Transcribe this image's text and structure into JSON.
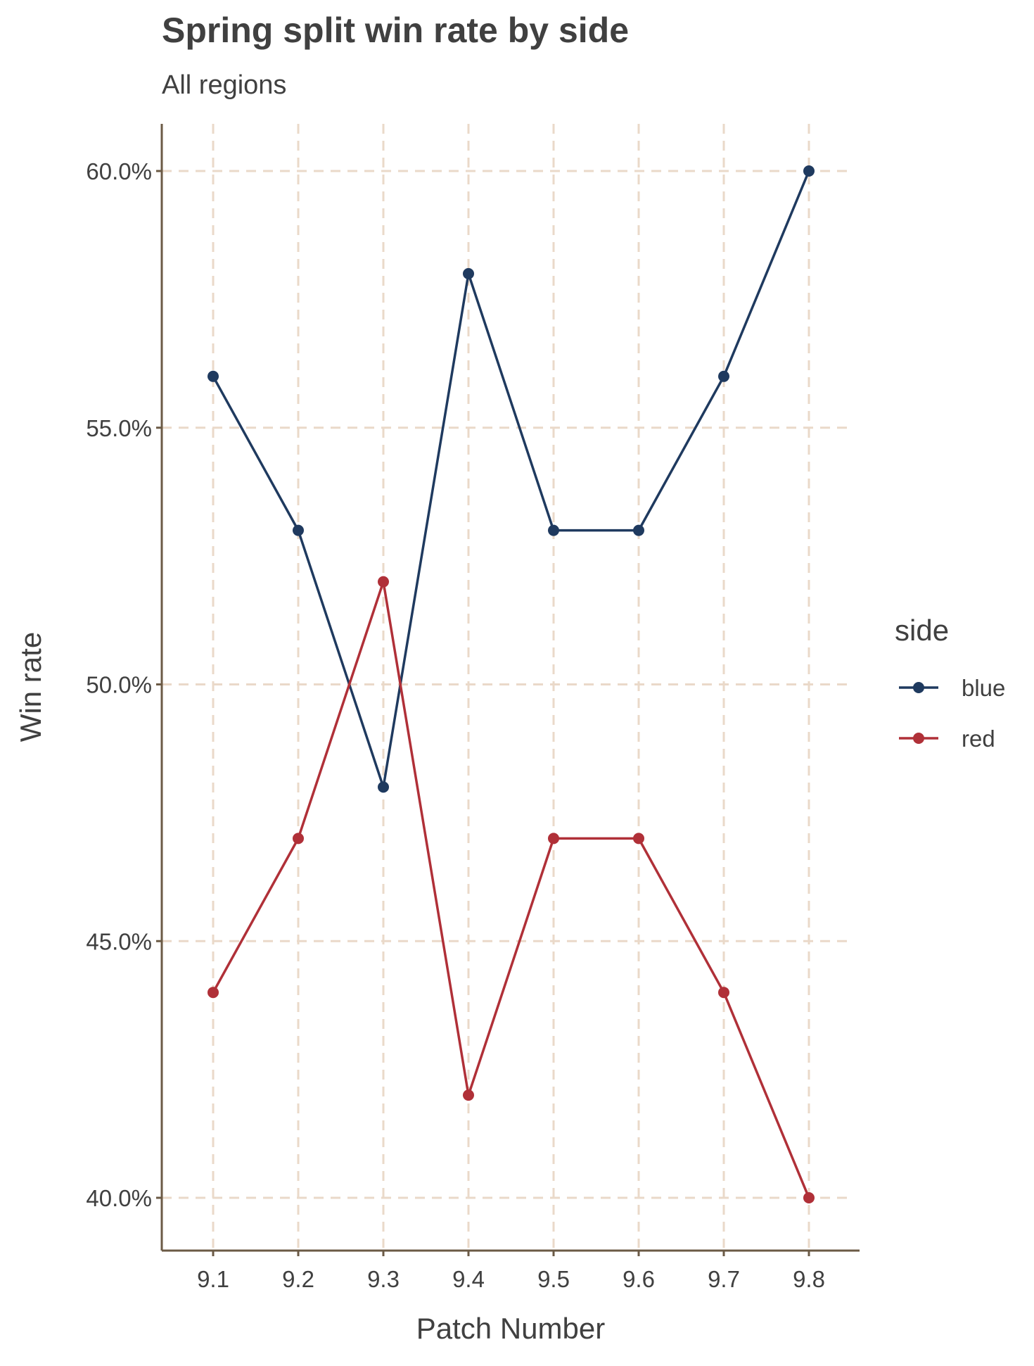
{
  "chart_data": {
    "type": "line",
    "title": "Spring split win rate by side",
    "subtitle": "All regions",
    "xlabel": "Patch Number",
    "ylabel": "Win rate",
    "categories": [
      "9.1",
      "9.2",
      "9.3",
      "9.4",
      "9.5",
      "9.6",
      "9.7",
      "9.8"
    ],
    "y_ticks": [
      0.4,
      0.45,
      0.5,
      0.55,
      0.6
    ],
    "y_tick_labels": [
      "40.0%",
      "45.0%",
      "50.0%",
      "55.0%",
      "60.0%"
    ],
    "ylim": [
      0.39,
      0.61
    ],
    "grid": true,
    "legend": {
      "title": "side",
      "placement": "right"
    },
    "series": [
      {
        "name": "blue",
        "color": "#1f3a5f",
        "values": [
          0.56,
          0.53,
          0.48,
          0.58,
          0.53,
          0.53,
          0.56,
          0.6
        ]
      },
      {
        "name": "red",
        "color": "#b03038",
        "values": [
          0.44,
          0.47,
          0.52,
          0.42,
          0.47,
          0.47,
          0.44,
          0.4
        ]
      }
    ],
    "colors": {
      "grid": "#ead9c9",
      "axis": "#6b5a45",
      "text": "#404040"
    }
  }
}
